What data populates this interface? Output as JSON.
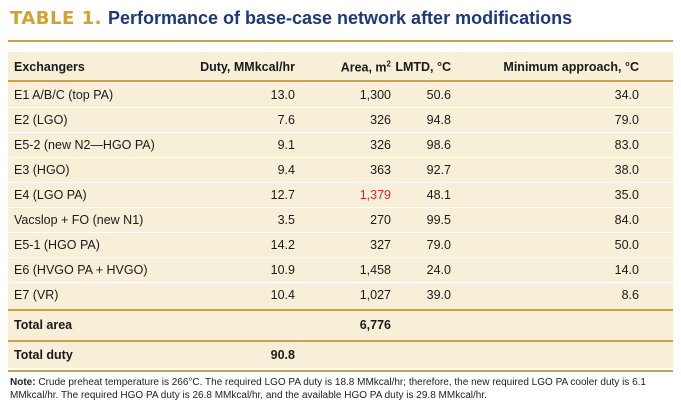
{
  "title": {
    "label": "TABLE 1.",
    "text": "Performance of base-case network after modifications"
  },
  "headers": [
    "Exchangers",
    "Duty, MMkcal/hr",
    "Area, m",
    "2",
    "LMTD, °C",
    "Minimum approach, °C"
  ],
  "rows": [
    [
      "E1 A/B/C (top PA)",
      "13.0",
      "1,300",
      "50.6",
      "34.0"
    ],
    [
      "E2 (LGO)",
      "7.6",
      "326",
      "94.8",
      "79.0"
    ],
    [
      "E5-2 (new N2—HGO PA)",
      "9.1",
      "326",
      "98.6",
      "83.0"
    ],
    [
      "E3 (HGO)",
      "9.4",
      "363",
      "92.7",
      "38.0"
    ],
    [
      "E4 (LGO PA)",
      "12.7",
      "1,379",
      "48.1",
      "35.0"
    ],
    [
      "Vacslop + FO (new N1)",
      "3.5",
      "270",
      "99.5",
      "84.0"
    ],
    [
      "E5-1 (HGO PA)",
      "14.2",
      "327",
      "79.0",
      "50.0"
    ],
    [
      "E6 (HVGO PA + HVGO)",
      "10.9",
      "1,458",
      "24.0",
      "14.0"
    ],
    [
      "E7 (VR)",
      "10.4",
      "1,027",
      "39.0",
      "8.6"
    ]
  ],
  "total_area": {
    "label": "Total area",
    "value": "6,776"
  },
  "total_duty": {
    "label": "Total duty",
    "value": "90.8"
  },
  "highlight_color": "#d7282f",
  "note": {
    "label": "Note:",
    "text": " Crude preheat temperature is 266°C. The required LGO PA duty is 18.8 MMkcal/hr; therefore, the new required LGO PA cooler duty is 6.1 MMkcal/hr. The required HGO PA duty is 26.8 MMkcal/hr, and the available HGO PA duty is 29.8 MMkcal/hr."
  }
}
